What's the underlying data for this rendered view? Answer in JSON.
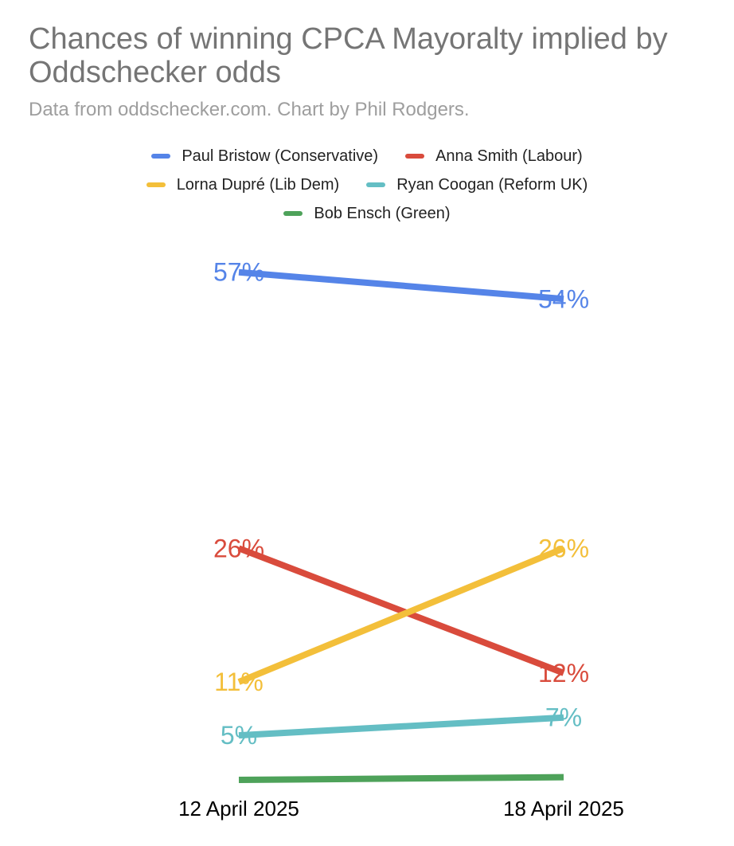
{
  "chart_data": {
    "type": "line",
    "title": "Chances of winning CPCA Mayoralty implied by Oddschecker odds",
    "subtitle": "Data from oddschecker.com. Chart by Phil Rodgers.",
    "x": [
      "12 April 2025",
      "18 April 2025"
    ],
    "legend_position": "top",
    "grid": false,
    "series": [
      {
        "name": "Paul Bristow (Conservative)",
        "color": "#5584e8",
        "values": [
          57,
          54
        ],
        "labels": [
          "57%",
          "54%"
        ]
      },
      {
        "name": "Anna Smith (Labour)",
        "color": "#d94b3c",
        "values": [
          26,
          12
        ],
        "labels": [
          "26%",
          "12%"
        ]
      },
      {
        "name": "Lorna Dupré (Lib Dem)",
        "color": "#f3bf3a",
        "values": [
          11,
          26
        ],
        "labels": [
          "11%",
          "26%"
        ]
      },
      {
        "name": "Ryan Coogan (Reform UK)",
        "color": "#64bec4",
        "values": [
          5,
          7
        ],
        "labels": [
          "5%",
          "7%"
        ]
      },
      {
        "name": "Bob Ensch (Green)",
        "color": "#4ea25a",
        "values": [
          0,
          0.3
        ],
        "labels": [
          "",
          ""
        ]
      }
    ]
  }
}
